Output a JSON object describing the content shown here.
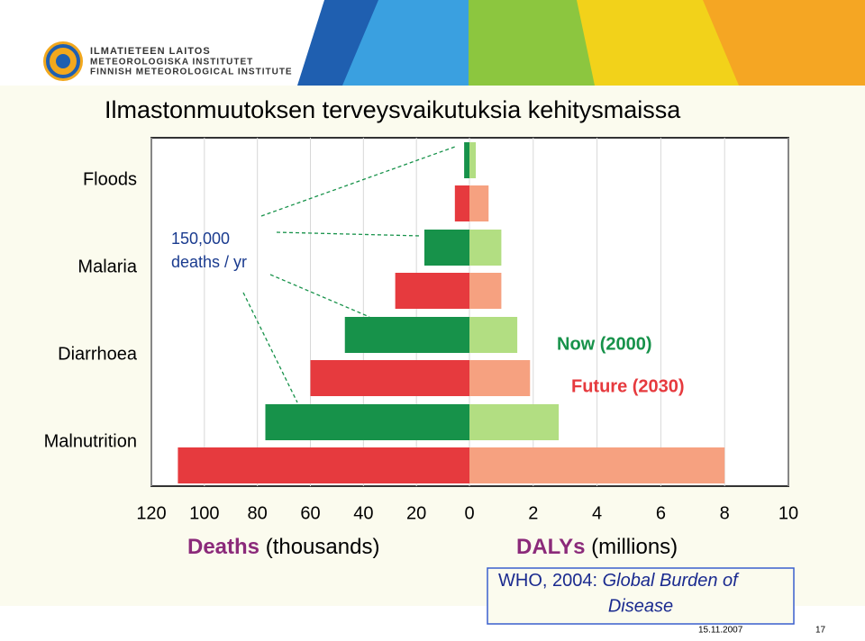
{
  "header": {
    "org_lines": [
      "ILMATIETEEN LAITOS",
      "METEOROLOGISKA INSTITUTET",
      "FINNISH METEOROLOGICAL INSTITUTE"
    ]
  },
  "title": "Ilmastonmuutoksen terveysvaikutuksia kehitysmaissa",
  "chart_data": [
    {
      "type": "bar",
      "orientation": "horizontal",
      "categories": [
        "Floods",
        "Malaria",
        "Diarrhoea",
        "Malnutrition"
      ],
      "xlabel": "Deaths",
      "xunit": "(thousands)",
      "xlim": [
        120,
        0
      ],
      "xticks": [
        120,
        100,
        80,
        60,
        40,
        20,
        0
      ],
      "grid": true,
      "series": [
        {
          "name": "Now (2000)",
          "color": "#17924a",
          "values": [
            2,
            17,
            47,
            77
          ]
        },
        {
          "name": "Future (2030)",
          "color": "#e63a3e",
          "values": [
            5.5,
            28,
            60,
            110
          ]
        }
      ],
      "annotation": [
        "150,000",
        "deaths / yr"
      ]
    },
    {
      "type": "bar",
      "orientation": "horizontal",
      "categories": [
        "Floods",
        "Malaria",
        "Diarrhoea",
        "Malnutrition"
      ],
      "xlabel": "DALYs",
      "xunit": "(millions)",
      "xlim": [
        0,
        10
      ],
      "xticks": [
        2,
        4,
        6,
        8,
        10
      ],
      "grid": true,
      "series": [
        {
          "color": "#b2de82",
          "values": [
            0.2,
            1.0,
            1.5,
            2.8
          ]
        },
        {
          "color": "#f6a180",
          "values": [
            0.6,
            1.0,
            1.9,
            8.0
          ]
        }
      ]
    }
  ],
  "source": {
    "text": "WHO, 2004:",
    "title": "Global Burden of Disease"
  },
  "footer": {
    "date": "15.11.2007",
    "page": "17"
  }
}
